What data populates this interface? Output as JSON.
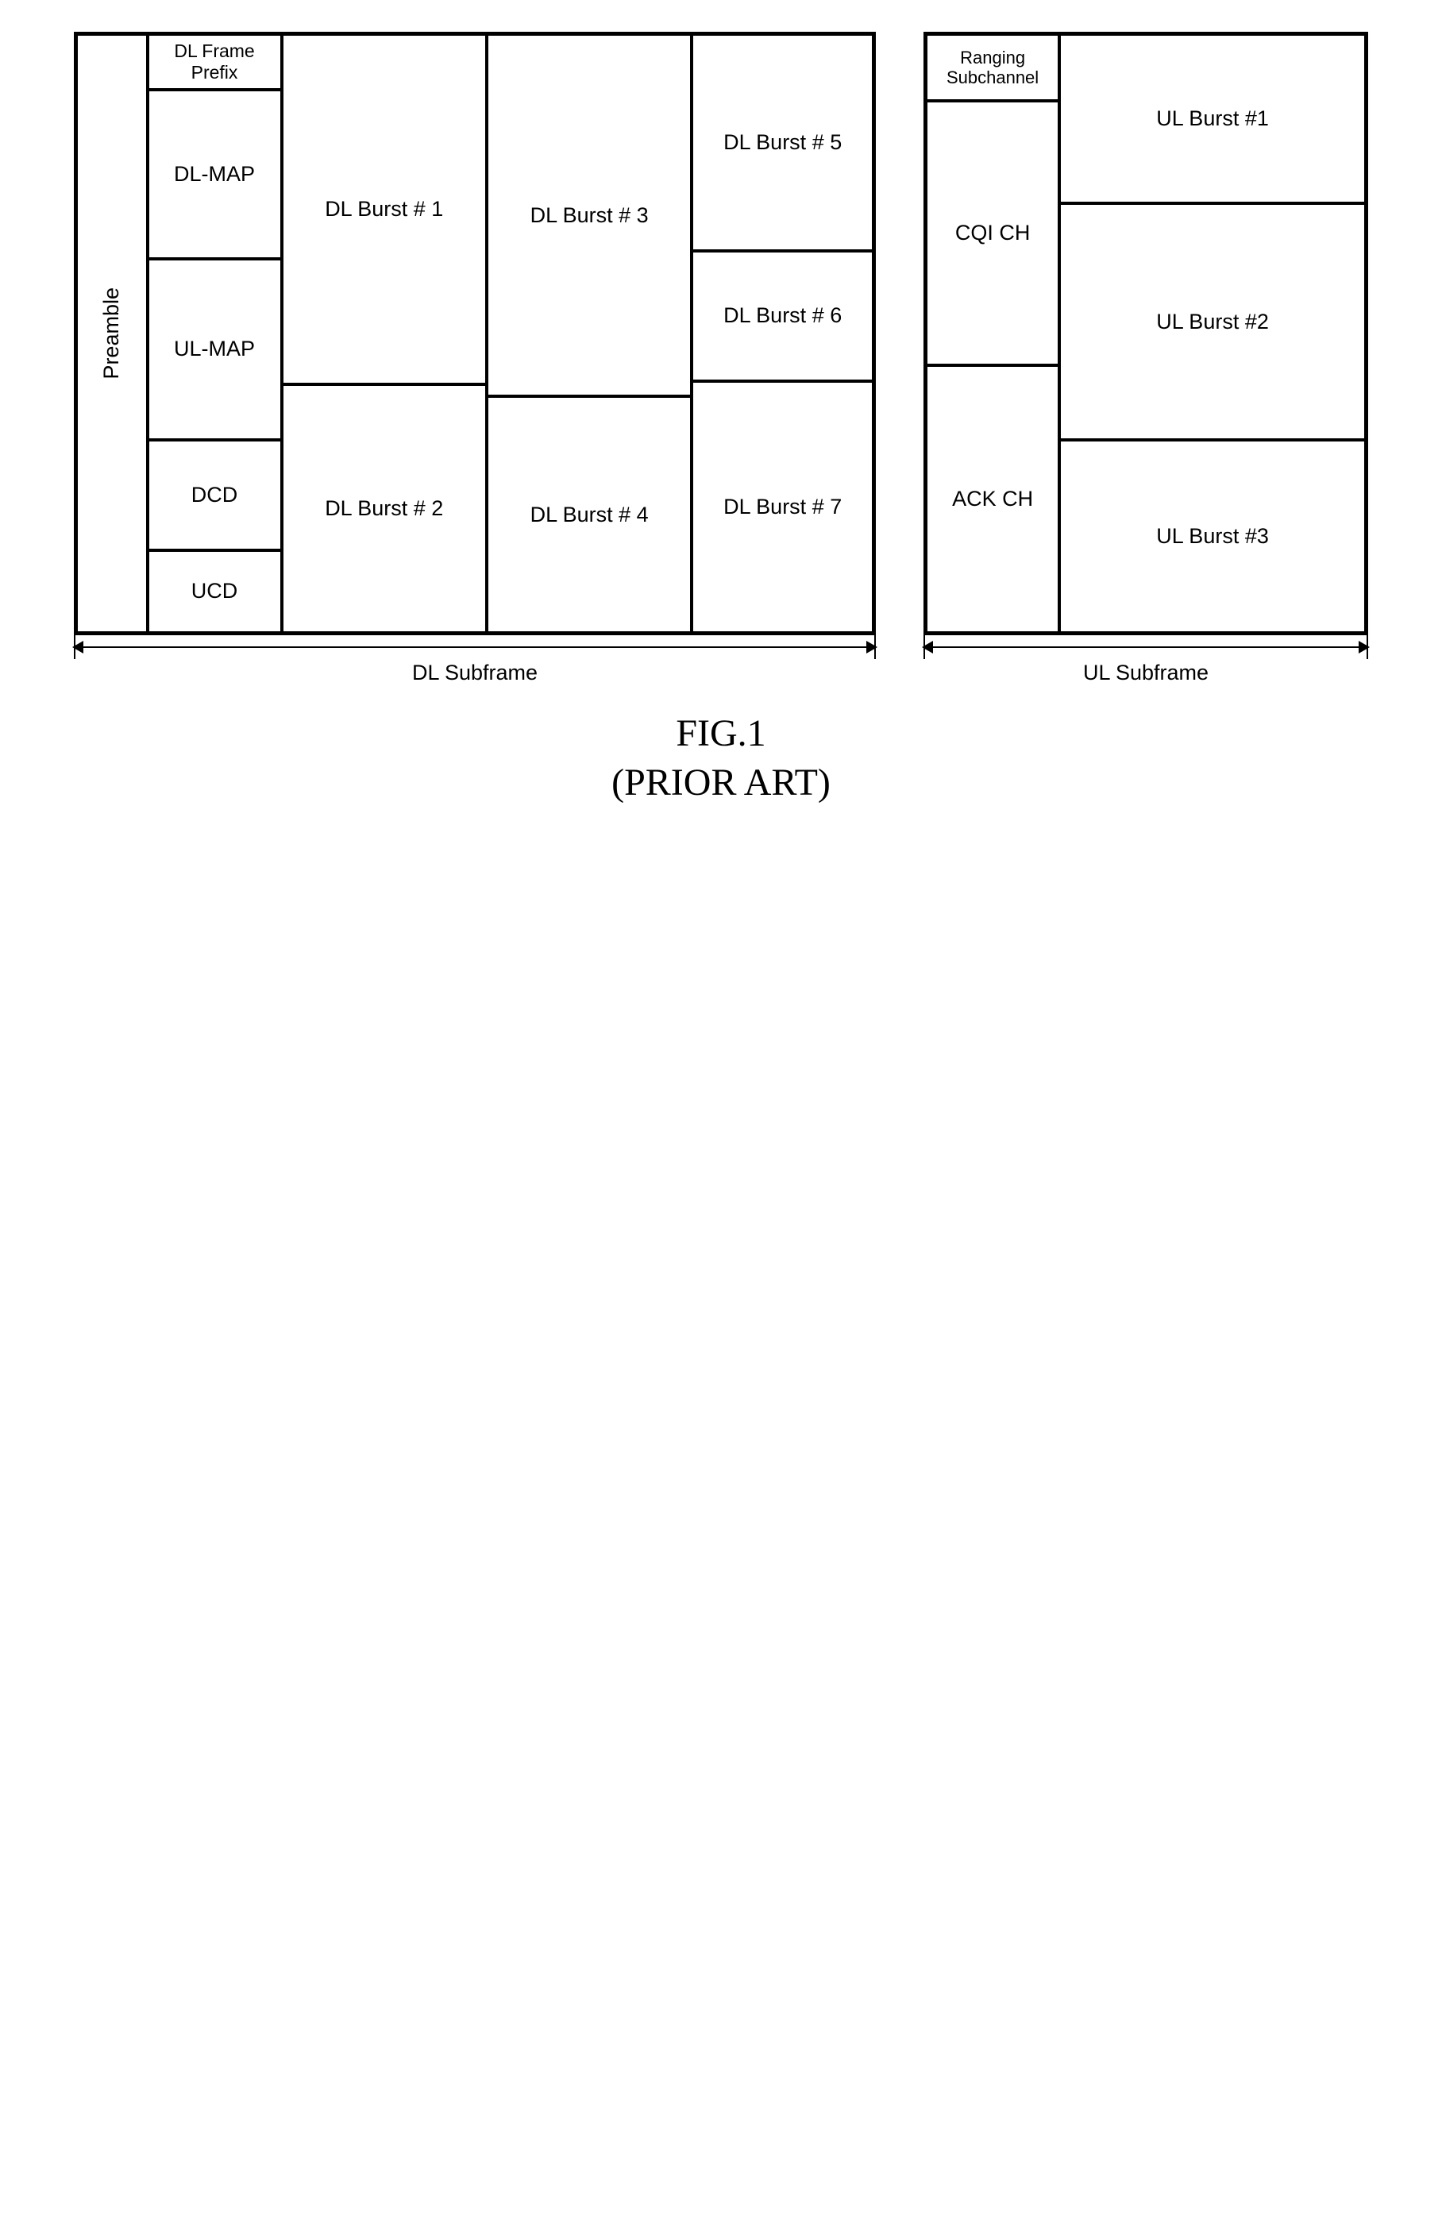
{
  "colors": {
    "stroke": "#000000",
    "bg": "#ffffff",
    "text": "#000000"
  },
  "dl": {
    "outer_w": 1010,
    "outer_h": 760,
    "outer_border_w": 3,
    "cell_border_w": 2,
    "preamble_w": 90,
    "map_col_w": 170,
    "burst12_col_w": 260,
    "burst34_col_w": 260,
    "burst567_col_w": 230,
    "row_prefix_h": 70,
    "row_dlmap_h": 215,
    "row_ulmap_h": 230,
    "row_dcd_h": 140,
    "row_ucd_h": 105,
    "burst1_h": 445,
    "burst2_h": 315,
    "burst3_h": 460,
    "burst4_h": 300,
    "burst5_h": 275,
    "burst6_h": 165,
    "burst7_h": 320,
    "font_body": 27,
    "font_small": 23,
    "labels": {
      "preamble": "Preamble",
      "prefix": "DL Frame Prefix",
      "dlmap": "DL-MAP",
      "ulmap": "UL-MAP",
      "dcd": "DCD",
      "ucd": "UCD",
      "b1": "DL Burst # 1",
      "b2": "DL Burst # 2",
      "b3": "DL Burst # 3",
      "b4": "DL Burst # 4",
      "b5": "DL Burst # 5",
      "b6": "DL Burst # 6",
      "b7": "DL Burst # 7"
    },
    "bracket_label": "DL Subframe",
    "bracket_font": 27
  },
  "ul": {
    "outer_w": 560,
    "outer_h": 760,
    "outer_border_w": 3,
    "cell_border_w": 2,
    "ctrl_col_w": 170,
    "burst_col_w": 390,
    "ranging_h": 85,
    "cqi_h": 335,
    "ack_h": 340,
    "ub1_h": 215,
    "ub2_h": 300,
    "ub3_h": 245,
    "font_body": 27,
    "font_small": 22,
    "labels": {
      "ranging1": "Ranging",
      "ranging2": "Subchannel",
      "cqi": "CQI CH",
      "ack": "ACK CH",
      "b1": "UL Burst #1",
      "b2": "UL Burst #2",
      "b3": "UL Burst #3"
    },
    "bracket_label": "UL Subframe",
    "bracket_font": 27
  },
  "caption": {
    "line1": "FIG.1",
    "line2": "(PRIOR ART)",
    "font": 48
  }
}
